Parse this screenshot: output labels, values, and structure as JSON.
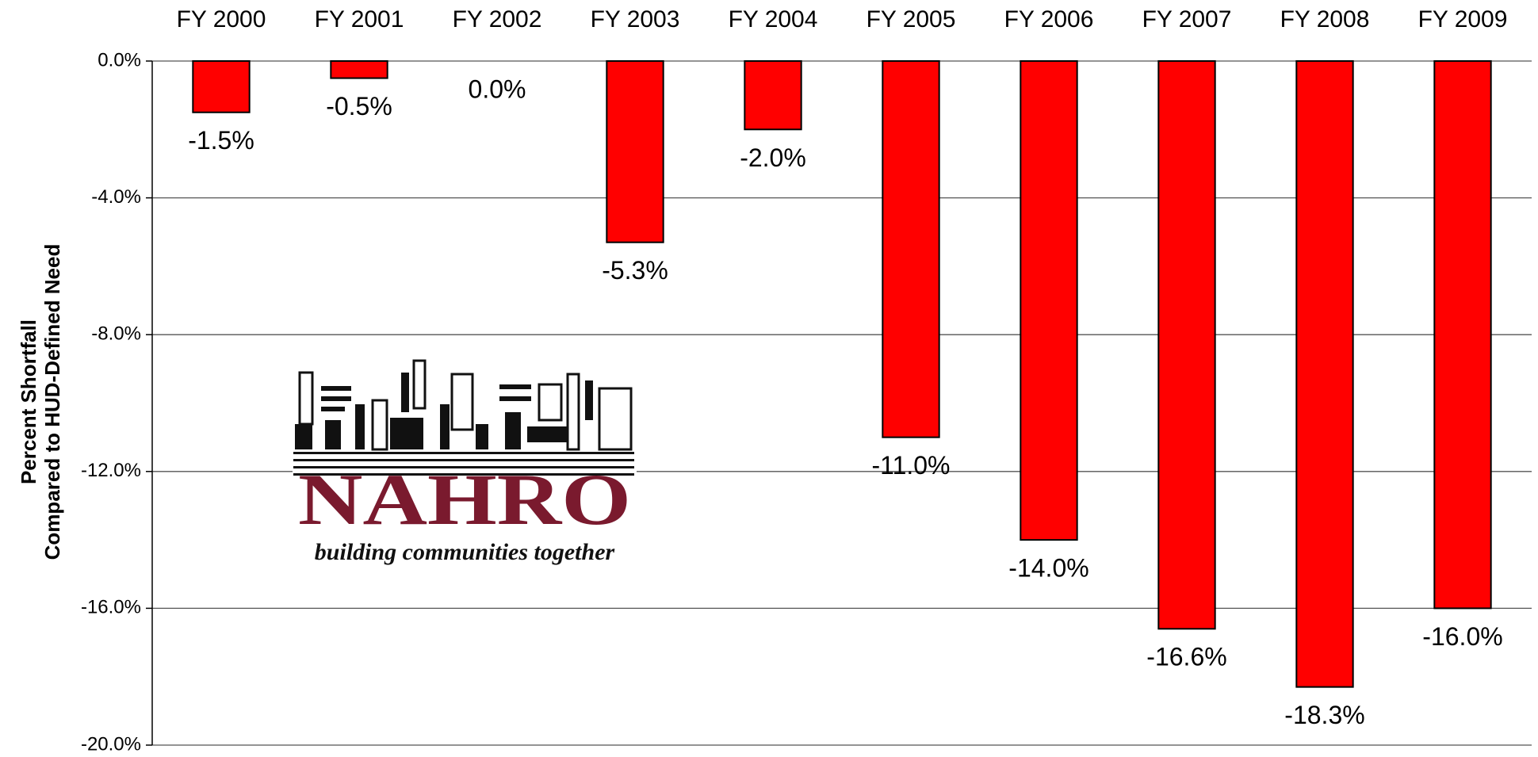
{
  "chart_data": {
    "type": "bar",
    "ylabel": [
      "Percent Shortfall",
      "Compared to HUD-Defined Need"
    ],
    "categories": [
      "FY 2000",
      "FY 2001",
      "FY 2002",
      "FY 2003",
      "FY 2004",
      "FY 2005",
      "FY 2006",
      "FY 2007",
      "FY 2008",
      "FY 2009"
    ],
    "values": [
      -1.5,
      -0.5,
      0.0,
      -5.3,
      -2.0,
      -11.0,
      -14.0,
      -16.6,
      -18.3,
      -16.0
    ],
    "value_labels": [
      "-1.5%",
      "-0.5%",
      "0.0%",
      "-5.3%",
      "-2.0%",
      "-11.0%",
      "-14.0%",
      "-16.6%",
      "-18.3%",
      "-16.0%"
    ],
    "color": "#ff0000",
    "ylim": [
      -20,
      0
    ],
    "yticks": [
      {
        "value": 0,
        "label": "0.0%"
      },
      {
        "value": -4,
        "label": "-4.0%"
      },
      {
        "value": -8,
        "label": "-8.0%"
      },
      {
        "value": -12,
        "label": "-12.0%"
      },
      {
        "value": -16,
        "label": "-16.0%"
      },
      {
        "value": -20,
        "label": "-20.0%"
      }
    ],
    "grid": true
  },
  "logo": {
    "name": "NAHRO",
    "tagline": "building communities together"
  }
}
